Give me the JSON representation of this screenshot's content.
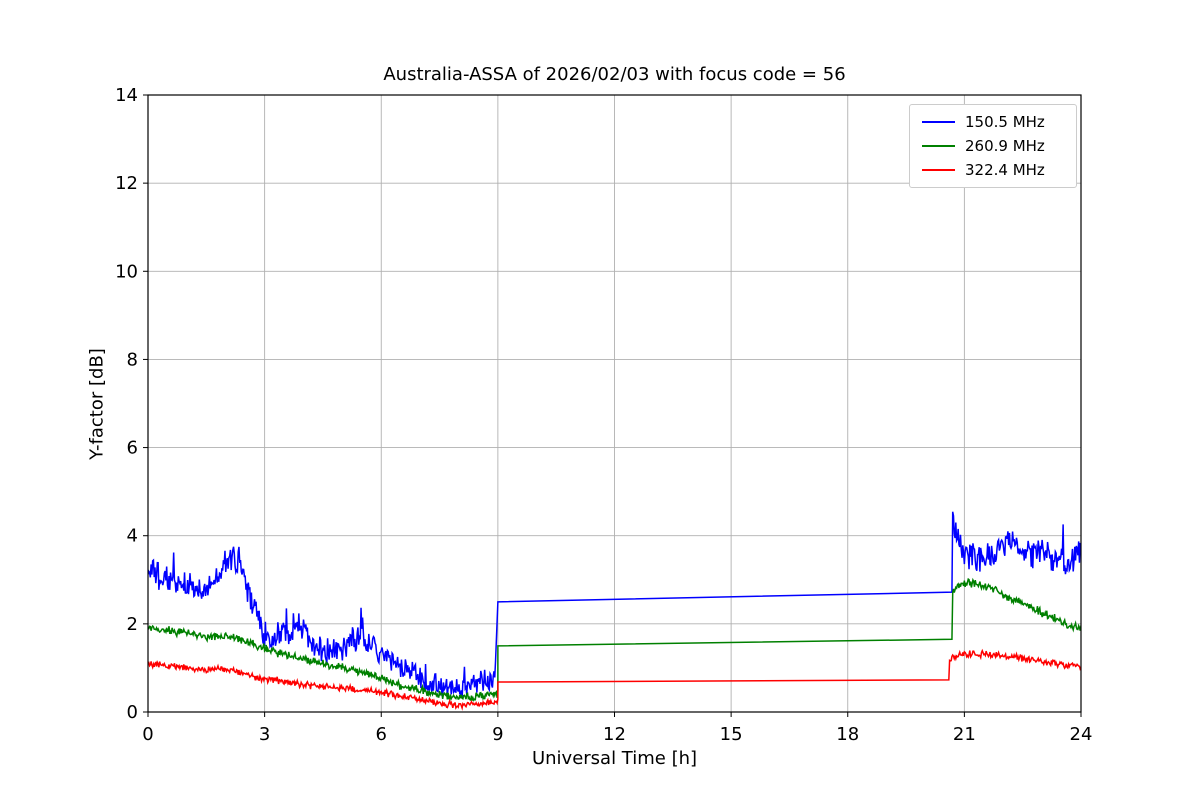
{
  "chart_data": {
    "type": "line",
    "title": "Australia-ASSA of 2026/02/03 with focus code = 56",
    "xlabel": "Universal Time [h]",
    "ylabel": "Y-factor [dB]",
    "xlim": [
      0,
      24
    ],
    "ylim": [
      0,
      14
    ],
    "xticks": [
      0,
      3,
      6,
      9,
      12,
      15,
      18,
      21,
      24
    ],
    "yticks": [
      0,
      2,
      4,
      6,
      8,
      10,
      12,
      14
    ],
    "grid": true,
    "grid_color": "#b0b0b0",
    "background": "#ffffff",
    "axis_color": "#000000",
    "legend_position": "upper right",
    "series": [
      {
        "name": "150.5 MHz",
        "color": "#0000ff",
        "segments": [
          {
            "kind": "noisy",
            "noise": 0.22,
            "spike": [
              0.05,
              0.55
            ],
            "points": [
              [
                0,
                3.2
              ],
              [
                0.3,
                3.05
              ],
              [
                0.6,
                2.95
              ],
              [
                1,
                2.9
              ],
              [
                1.3,
                2.7
              ],
              [
                1.6,
                2.8
              ],
              [
                1.9,
                3.2
              ],
              [
                2.1,
                3.5
              ],
              [
                2.35,
                3.4
              ],
              [
                2.5,
                2.9
              ],
              [
                2.8,
                2.2
              ],
              [
                3,
                1.75
              ],
              [
                3.2,
                1.6
              ],
              [
                3.5,
                1.8
              ],
              [
                3.8,
                2.0
              ],
              [
                4,
                1.9
              ],
              [
                4.2,
                1.6
              ],
              [
                4.5,
                1.35
              ],
              [
                4.8,
                1.5
              ],
              [
                5,
                1.45
              ],
              [
                5.3,
                1.6
              ],
              [
                5.6,
                1.65
              ],
              [
                5.9,
                1.3
              ],
              [
                6.2,
                1.2
              ],
              [
                6.5,
                1.05
              ],
              [
                6.8,
                0.9
              ],
              [
                7.1,
                0.75
              ],
              [
                7.4,
                0.6
              ],
              [
                7.7,
                0.5
              ],
              [
                8,
                0.5
              ],
              [
                8.3,
                0.55
              ],
              [
                8.6,
                0.65
              ],
              [
                8.8,
                0.7
              ],
              [
                8.95,
                1.0
              ]
            ]
          },
          {
            "kind": "smooth",
            "points": [
              [
                9,
                2.5
              ],
              [
                20.68,
                2.72
              ]
            ]
          },
          {
            "kind": "noisy",
            "noise": 0.25,
            "spike": [
              0.06,
              0.8
            ],
            "points": [
              [
                20.7,
                4.5
              ],
              [
                20.75,
                4.1
              ],
              [
                20.9,
                3.8
              ],
              [
                21.1,
                3.6
              ],
              [
                21.4,
                3.5
              ],
              [
                21.7,
                3.6
              ],
              [
                22.0,
                3.7
              ],
              [
                22.3,
                3.9
              ],
              [
                22.45,
                3.7
              ],
              [
                22.7,
                3.6
              ],
              [
                23.0,
                3.7
              ],
              [
                23.2,
                3.5
              ],
              [
                23.5,
                3.4
              ],
              [
                23.8,
                3.4
              ],
              [
                24,
                3.7
              ]
            ]
          }
        ]
      },
      {
        "name": "260.9 MHz",
        "color": "#008000",
        "segments": [
          {
            "kind": "noisy",
            "noise": 0.07,
            "points": [
              [
                0,
                1.9
              ],
              [
                0.5,
                1.85
              ],
              [
                1,
                1.8
              ],
              [
                1.5,
                1.7
              ],
              [
                2,
                1.75
              ],
              [
                2.5,
                1.6
              ],
              [
                3,
                1.45
              ],
              [
                3.5,
                1.3
              ],
              [
                4,
                1.2
              ],
              [
                4.5,
                1.1
              ],
              [
                5,
                1.0
              ],
              [
                5.5,
                0.9
              ],
              [
                6,
                0.75
              ],
              [
                6.5,
                0.6
              ],
              [
                7,
                0.5
              ],
              [
                7.5,
                0.4
              ],
              [
                8,
                0.33
              ],
              [
                8.5,
                0.35
              ],
              [
                9,
                0.42
              ]
            ]
          },
          {
            "kind": "smooth",
            "points": [
              [
                9,
                1.5
              ],
              [
                20.68,
                1.65
              ]
            ]
          },
          {
            "kind": "noisy",
            "noise": 0.07,
            "points": [
              [
                20.7,
                2.75
              ],
              [
                20.9,
                2.9
              ],
              [
                21.1,
                2.92
              ],
              [
                21.4,
                2.88
              ],
              [
                21.7,
                2.8
              ],
              [
                22,
                2.65
              ],
              [
                22.3,
                2.55
              ],
              [
                22.7,
                2.4
              ],
              [
                23,
                2.25
              ],
              [
                23.4,
                2.1
              ],
              [
                23.7,
                1.95
              ],
              [
                24,
                1.9
              ]
            ]
          }
        ]
      },
      {
        "name": "322.4 MHz",
        "color": "#ff0000",
        "segments": [
          {
            "kind": "noisy",
            "noise": 0.055,
            "points": [
              [
                0,
                1.1
              ],
              [
                0.5,
                1.05
              ],
              [
                1,
                1.0
              ],
              [
                1.5,
                0.95
              ],
              [
                2,
                0.97
              ],
              [
                2.3,
                0.9
              ],
              [
                2.7,
                0.8
              ],
              [
                3,
                0.75
              ],
              [
                3.5,
                0.7
              ],
              [
                4,
                0.62
              ],
              [
                4.5,
                0.57
              ],
              [
                5,
                0.55
              ],
              [
                5.5,
                0.5
              ],
              [
                6,
                0.45
              ],
              [
                6.5,
                0.35
              ],
              [
                7,
                0.28
              ],
              [
                7.5,
                0.2
              ],
              [
                8,
                0.15
              ],
              [
                8.5,
                0.18
              ],
              [
                9,
                0.24
              ]
            ]
          },
          {
            "kind": "smooth",
            "points": [
              [
                9,
                0.68
              ],
              [
                20.6,
                0.73
              ]
            ]
          },
          {
            "kind": "noisy",
            "noise": 0.06,
            "points": [
              [
                20.62,
                1.2
              ],
              [
                20.9,
                1.28
              ],
              [
                21.2,
                1.32
              ],
              [
                21.6,
                1.3
              ],
              [
                22,
                1.27
              ],
              [
                22.4,
                1.22
              ],
              [
                22.8,
                1.18
              ],
              [
                23.2,
                1.12
              ],
              [
                23.6,
                1.08
              ],
              [
                24,
                1.02
              ]
            ]
          }
        ]
      }
    ]
  }
}
